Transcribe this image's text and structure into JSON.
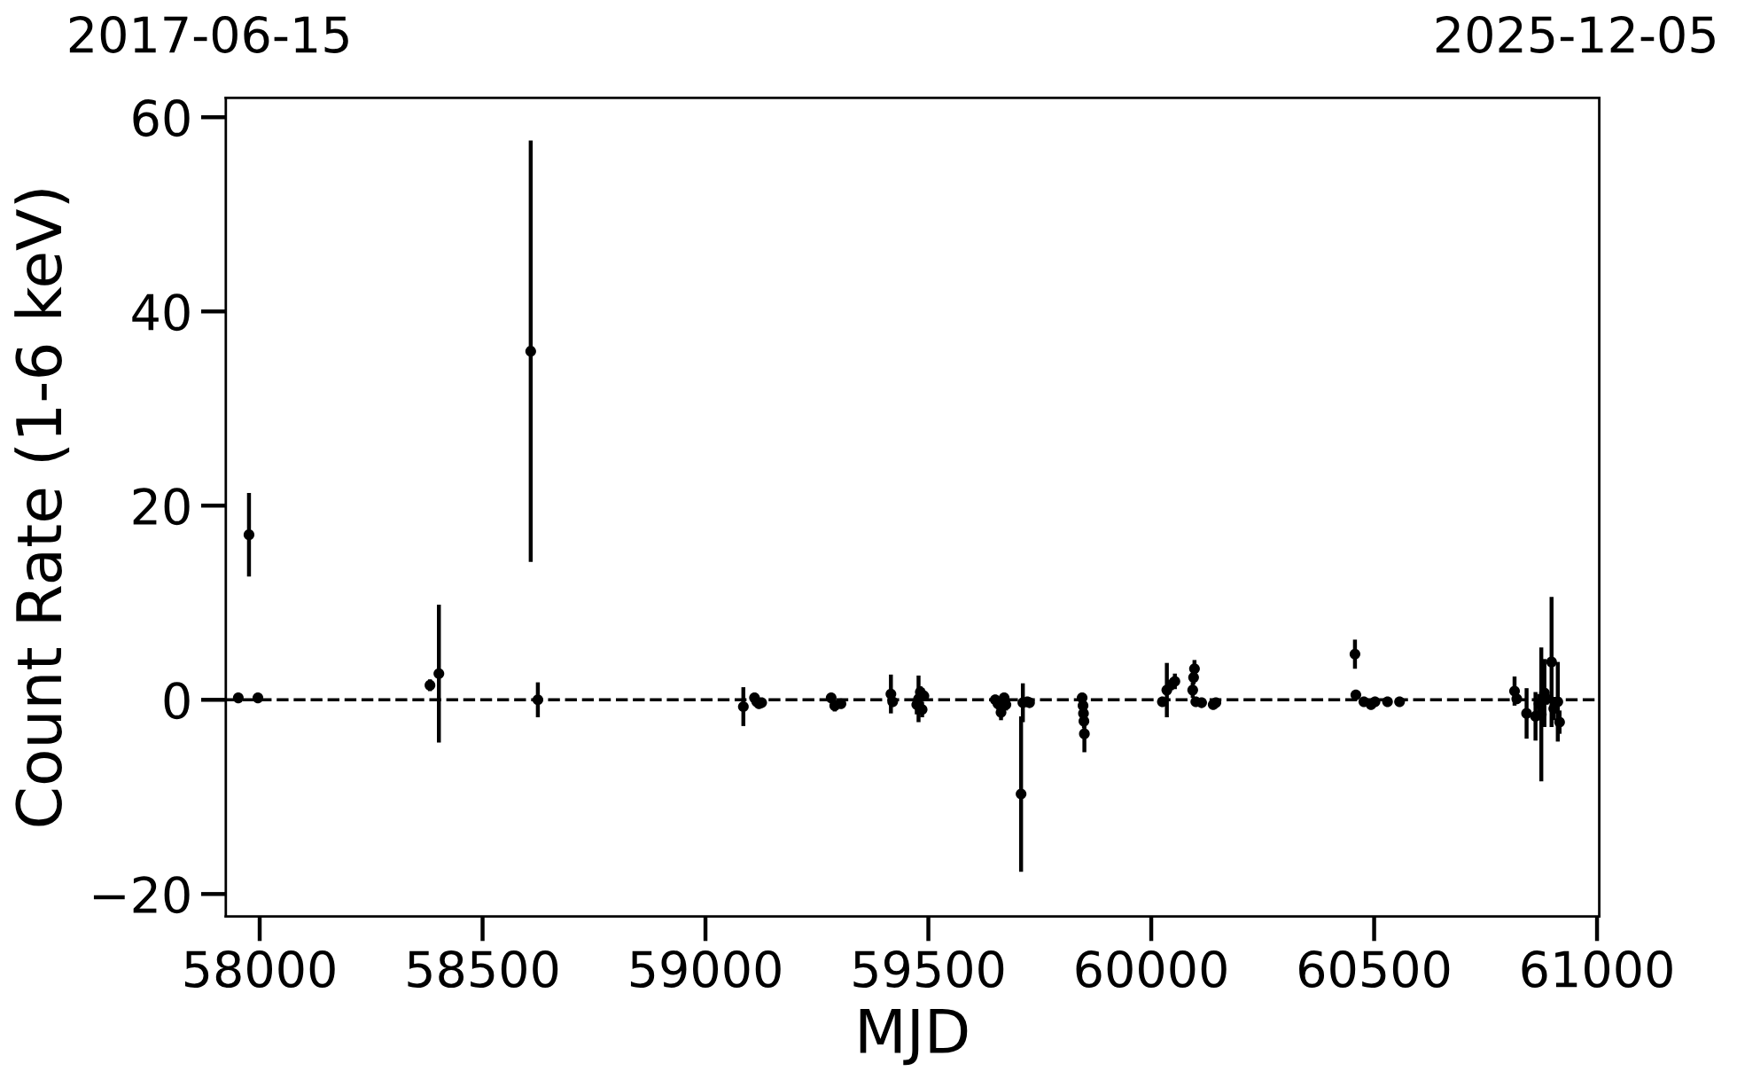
{
  "chart_data": {
    "type": "scatter",
    "xlabel": "MJD",
    "ylabel": "Count Rate (1-6 keV)",
    "annotations": [
      "2017-06-15",
      "2025-12-05"
    ],
    "marker": "circle",
    "xlim": [
      57924,
      61005
    ],
    "xticks": [
      58000,
      58500,
      59000,
      59500,
      60000,
      60500,
      61000
    ],
    "ylim": [
      -22.3,
      62
    ],
    "yticks": [
      {
        "value": -20,
        "label": "−20"
      },
      0,
      20,
      40,
      60
    ],
    "ref_lines": [
      {
        "axis": "y",
        "value": 0,
        "color": "#000000",
        "line_style": "dashed"
      }
    ],
    "series": [
      {
        "color": "#000000",
        "x": [
          57952,
          57976,
          57996,
          58382,
          58402,
          58608,
          58624,
          59085,
          59110,
          59115,
          59120,
          59126,
          59282,
          59290,
          59304,
          59416,
          59420,
          59474,
          59478,
          59482,
          59486,
          59490,
          59650,
          59656,
          59663,
          59670,
          59674,
          59708,
          59712,
          59722,
          59727,
          59845,
          59847,
          59848,
          59849,
          59850,
          60025,
          60035,
          60046,
          60053,
          60093,
          60095,
          60097,
          60100,
          60113,
          60139,
          60145,
          60457,
          60459,
          60477,
          60493,
          60502,
          60530,
          60557,
          60815,
          60820,
          60842,
          60862,
          60870,
          60875,
          60882,
          60887,
          60898,
          60903,
          60912,
          60916
        ],
        "values": [
          0.2,
          17.0,
          0.2,
          1.5,
          2.7,
          35.9,
          0.0,
          -0.7,
          0.2,
          -0.2,
          -0.4,
          -0.3,
          0.2,
          -0.6,
          -0.4,
          0.6,
          -0.2,
          -0.5,
          0.1,
          0.8,
          -1.0,
          0.4,
          0.0,
          -0.4,
          -1.3,
          0.2,
          -0.5,
          -9.7,
          -0.3,
          -0.2,
          -0.3,
          0.2,
          -0.6,
          -1.4,
          -2.2,
          -3.5,
          -0.2,
          1.0,
          1.6,
          1.9,
          1.0,
          2.3,
          3.2,
          -0.2,
          -0.3,
          -0.5,
          -0.3,
          4.7,
          0.5,
          -0.2,
          -0.5,
          -0.2,
          -0.2,
          -0.2,
          0.9,
          0.1,
          -1.4,
          -1.7,
          -0.4,
          -1.5,
          0.7,
          0.1,
          3.9,
          -0.9,
          -0.2,
          -2.3
        ],
        "errors": [
          0.3,
          4.3,
          0.3,
          0.6,
          7.1,
          21.7,
          1.8,
          2.0,
          0.5,
          0.4,
          0.4,
          0.5,
          0.4,
          0.6,
          0.4,
          2.0,
          0.5,
          1.0,
          2.4,
          0.6,
          0.8,
          0.5,
          0.5,
          0.6,
          0.8,
          0.5,
          0.6,
          8.0,
          2.0,
          0.5,
          0.4,
          0.5,
          0.6,
          0.6,
          0.7,
          1.9,
          0.5,
          2.8,
          0.6,
          0.8,
          0.8,
          0.7,
          0.9,
          0.4,
          0.3,
          0.4,
          0.3,
          1.5,
          0.4,
          0.3,
          0.4,
          0.3,
          0.3,
          0.3,
          1.5,
          0.5,
          2.6,
          2.5,
          1.0,
          6.9,
          3.5,
          0.6,
          6.7,
          1.2,
          4.1,
          1.2
        ]
      }
    ]
  }
}
